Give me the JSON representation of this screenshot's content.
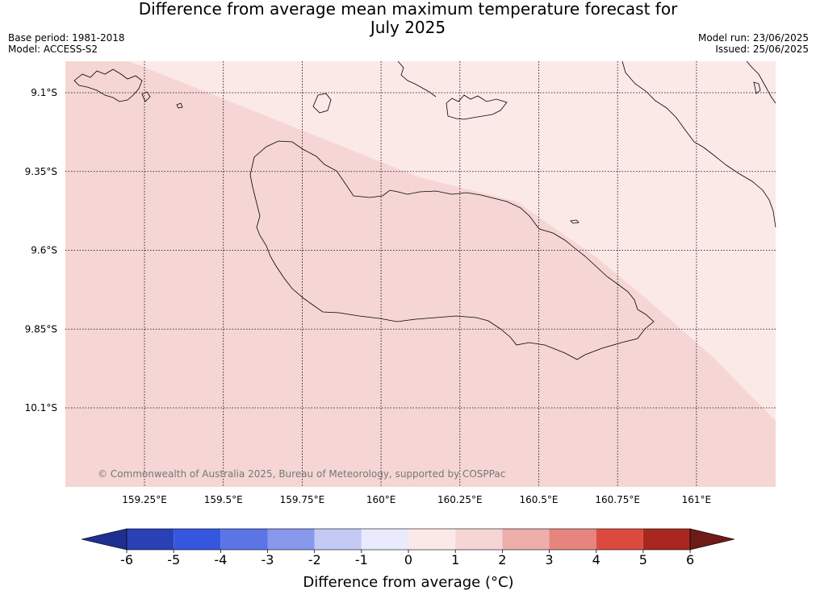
{
  "title_line1": "Difference from average mean maximum temperature forecast for",
  "title_line2": "July 2025",
  "base_period": "Base period: 1981-2018",
  "model": "Model: ACCESS-S2",
  "model_run": "Model run: 23/06/2025",
  "issued": "Issued: 25/06/2025",
  "map": {
    "latitudes": [
      {
        "label": "9.1°S",
        "value": -9.1
      },
      {
        "label": "9.35°S",
        "value": -9.35
      },
      {
        "label": "9.6°S",
        "value": -9.6
      },
      {
        "label": "9.85°S",
        "value": -9.85
      },
      {
        "label": "10.1°S",
        "value": -10.1
      }
    ],
    "longitudes": [
      {
        "label": "159.25°E",
        "value": 159.25
      },
      {
        "label": "159.5°E",
        "value": 159.5
      },
      {
        "label": "159.75°E",
        "value": 159.75
      },
      {
        "label": "160°E",
        "value": 160.0
      },
      {
        "label": "160.25°E",
        "value": 160.25
      },
      {
        "label": "160.5°E",
        "value": 160.5
      },
      {
        "label": "160.75°E",
        "value": 160.75
      },
      {
        "label": "161°E",
        "value": 161.0
      }
    ],
    "regions": [
      {
        "range": "1 to 2",
        "color": "#f5d6d4"
      },
      {
        "range": "0 to 1",
        "color": "#fbe9e8"
      }
    ],
    "copyright": "© Commonwealth of Australia 2025, Bureau of Meteorology, supported by COSPPac"
  },
  "colorbar": {
    "title": "Difference from average (°C)",
    "ticks": [
      "-6",
      "-5",
      "-4",
      "-3",
      "-2",
      "-1",
      "0",
      "1",
      "2",
      "3",
      "4",
      "5",
      "6"
    ],
    "colors": [
      "#1f2f8f",
      "#2a41b5",
      "#3557e0",
      "#5b74e6",
      "#8898ec",
      "#c2c9f5",
      "#e9ebfd",
      "#fbe9e8",
      "#f5d6d4",
      "#eeaeaa",
      "#e6857e",
      "#dc4a3f",
      "#a8281f",
      "#6e1a16"
    ]
  }
}
